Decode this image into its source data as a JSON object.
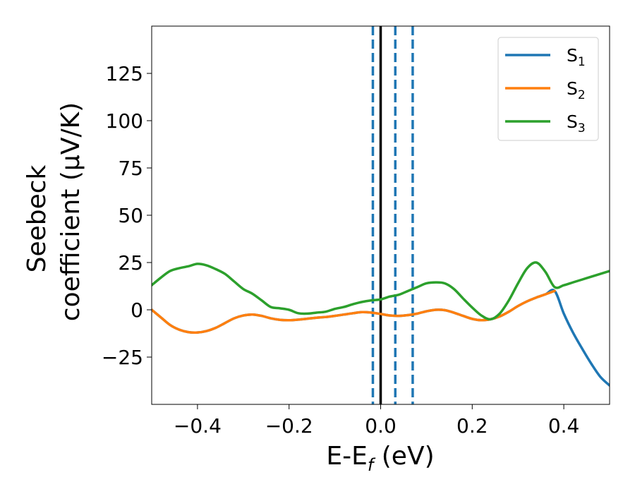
{
  "chart_data": {
    "type": "line",
    "title": "",
    "xlabel": {
      "main": "E-E",
      "sub": "f",
      "tail": " (eV)"
    },
    "ylabel": {
      "line1": "Seebeck",
      "line2": "coefficient  (μV/K)"
    },
    "xlim": [
      -0.5,
      0.5
    ],
    "ylim": [
      -50,
      150
    ],
    "xticks": [
      -0.4,
      -0.2,
      0.0,
      0.2,
      0.4
    ],
    "xtick_labels": [
      "−0.4",
      "−0.2",
      "0.0",
      "0.2",
      "0.4"
    ],
    "yticks": [
      -25,
      0,
      25,
      50,
      75,
      100,
      125
    ],
    "ytick_labels": [
      "−25",
      "0",
      "25",
      "50",
      "75",
      "100",
      "125"
    ],
    "grid": false,
    "legend_position": "top-right",
    "series": [
      {
        "name": "S1",
        "label_main": "S",
        "label_sub": "1",
        "color": "#1f77b4",
        "x": [
          -0.5,
          -0.48,
          -0.46,
          -0.44,
          -0.42,
          -0.4,
          -0.38,
          -0.36,
          -0.34,
          -0.32,
          -0.3,
          -0.28,
          -0.26,
          -0.24,
          -0.22,
          -0.2,
          -0.18,
          -0.16,
          -0.14,
          -0.12,
          -0.1,
          -0.08,
          -0.06,
          -0.04,
          -0.02,
          0.0,
          0.02,
          0.04,
          0.06,
          0.08,
          0.1,
          0.12,
          0.14,
          0.16,
          0.18,
          0.2,
          0.22,
          0.24,
          0.26,
          0.28,
          0.3,
          0.32,
          0.34,
          0.36,
          0.38,
          0.4,
          0.42,
          0.44,
          0.46,
          0.48,
          0.5
        ],
        "y": [
          0,
          -4,
          -8,
          -10.5,
          -11.8,
          -12,
          -11.2,
          -9.5,
          -7,
          -4.5,
          -3,
          -2.5,
          -3.2,
          -4.5,
          -5.3,
          -5.5,
          -5.2,
          -4.7,
          -4.2,
          -3.8,
          -3.2,
          -2.5,
          -1.8,
          -1.2,
          -1.5,
          -2.2,
          -3,
          -3.2,
          -2.8,
          -2,
          -0.8,
          0,
          -0.2,
          -1.5,
          -3.2,
          -4.8,
          -5.5,
          -5,
          -3.5,
          -1,
          2,
          4.5,
          6.5,
          8.2,
          10,
          -2,
          -12,
          -20.5,
          -28.5,
          -35.5,
          -40
        ]
      },
      {
        "name": "S2",
        "label_main": "S",
        "label_sub": "2",
        "color": "#ff7f0e",
        "x": [
          -0.5,
          -0.48,
          -0.46,
          -0.44,
          -0.42,
          -0.4,
          -0.38,
          -0.36,
          -0.34,
          -0.32,
          -0.3,
          -0.28,
          -0.26,
          -0.24,
          -0.22,
          -0.2,
          -0.18,
          -0.16,
          -0.14,
          -0.12,
          -0.1,
          -0.08,
          -0.06,
          -0.04,
          -0.02,
          0.0,
          0.02,
          0.04,
          0.06,
          0.08,
          0.1,
          0.12,
          0.14,
          0.16,
          0.18,
          0.2,
          0.22,
          0.24,
          0.26,
          0.28,
          0.3,
          0.32,
          0.34,
          0.36,
          0.38
        ],
        "y": [
          0,
          -4,
          -8,
          -10.5,
          -11.8,
          -12,
          -11.2,
          -9.5,
          -7,
          -4.5,
          -3,
          -2.5,
          -3.2,
          -4.5,
          -5.3,
          -5.5,
          -5.2,
          -4.7,
          -4.2,
          -3.8,
          -3.2,
          -2.5,
          -1.8,
          -1.2,
          -1.5,
          -2.2,
          -3,
          -3.2,
          -2.8,
          -2,
          -0.8,
          0,
          -0.2,
          -1.5,
          -3.2,
          -4.8,
          -5.5,
          -5,
          -3.5,
          -1,
          2,
          4.5,
          6.5,
          8.2,
          10
        ]
      },
      {
        "name": "S3",
        "label_main": "S",
        "label_sub": "3",
        "color": "#2ca02c",
        "x": [
          -0.5,
          -0.48,
          -0.46,
          -0.44,
          -0.42,
          -0.4,
          -0.38,
          -0.36,
          -0.34,
          -0.32,
          -0.3,
          -0.28,
          -0.26,
          -0.24,
          -0.22,
          -0.2,
          -0.18,
          -0.16,
          -0.14,
          -0.12,
          -0.1,
          -0.08,
          -0.06,
          -0.04,
          -0.02,
          0.0,
          0.02,
          0.04,
          0.06,
          0.08,
          0.1,
          0.12,
          0.14,
          0.16,
          0.18,
          0.2,
          0.22,
          0.24,
          0.26,
          0.28,
          0.3,
          0.32,
          0.34,
          0.36,
          0.38,
          0.4,
          0.42,
          0.44,
          0.46,
          0.48,
          0.5
        ],
        "y": [
          13,
          17,
          20.5,
          22,
          23,
          24.3,
          23.5,
          21.5,
          19,
          15,
          11,
          8.5,
          5,
          1.5,
          0.8,
          0,
          -1.8,
          -2,
          -1.5,
          -1,
          0.5,
          1.5,
          3,
          4.2,
          5,
          5.5,
          7,
          8,
          10,
          12,
          14,
          14.5,
          14,
          11,
          6,
          1.2,
          -3,
          -5,
          -2,
          5,
          14,
          22,
          25,
          20,
          12,
          13,
          14.5,
          16,
          17.5,
          19,
          20.5
        ]
      }
    ],
    "vlines": [
      {
        "x": -0.017,
        "style": "dashed",
        "color": "#1f77b4"
      },
      {
        "x": 0.0,
        "style": "solid",
        "color": "#000000"
      },
      {
        "x": 0.032,
        "style": "dashed",
        "color": "#1f77b4"
      },
      {
        "x": 0.07,
        "style": "dashed",
        "color": "#1f77b4"
      }
    ]
  }
}
